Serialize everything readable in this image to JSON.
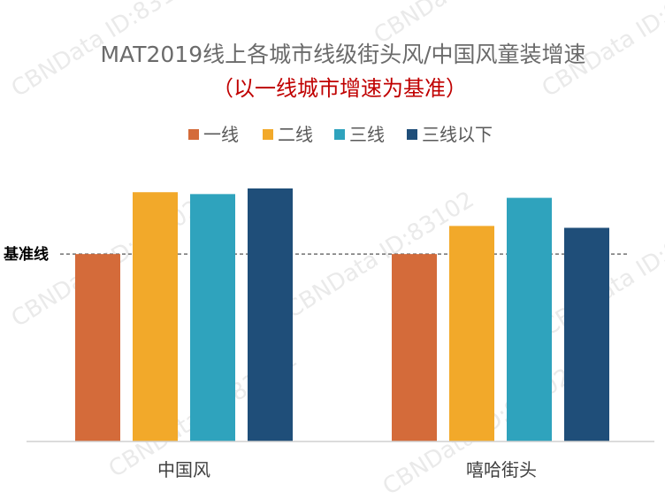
{
  "watermark": "CBNData ID:83102",
  "chart_data": {
    "type": "bar",
    "title": "MAT2019线上各城市线级街头风/中国风童装增速",
    "subtitle": "（以一线城市增速为基准）",
    "categories": [
      "中国风",
      "嘻哈街头"
    ],
    "series": [
      {
        "name": "一线",
        "color": "#d46b3a",
        "values": [
          1.0,
          1.0
        ]
      },
      {
        "name": "二线",
        "color": "#f2a92a",
        "values": [
          1.33,
          1.15
        ]
      },
      {
        "name": "三线",
        "color": "#2fa3bd",
        "values": [
          1.32,
          1.3
        ]
      },
      {
        "name": "三线以下",
        "color": "#1f4e79",
        "values": [
          1.35,
          1.14
        ]
      }
    ],
    "baseline": {
      "label": "基准线",
      "value": 1.0
    },
    "ylim": [
      0,
      1.35
    ],
    "legend_position": "top-center",
    "grid": false
  }
}
